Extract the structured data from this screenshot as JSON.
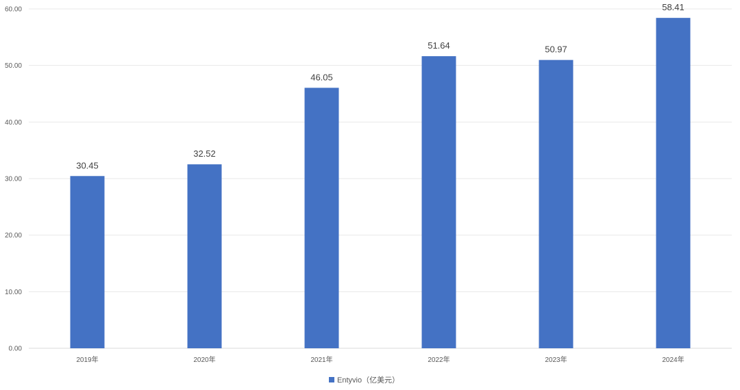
{
  "chart_data": {
    "type": "bar",
    "title": "",
    "xlabel": "",
    "ylabel": "",
    "categories": [
      "2019年",
      "2020年",
      "2021年",
      "2022年",
      "2023年",
      "2024年"
    ],
    "series": [
      {
        "name": "Entyvio（亿美元）",
        "values": [
          30.45,
          32.52,
          46.05,
          51.64,
          50.97,
          58.41
        ],
        "color": "#4472C4"
      }
    ],
    "ylim": [
      0,
      60
    ],
    "yticks": [
      "0.00",
      "10.00",
      "20.00",
      "30.00",
      "40.00",
      "50.00",
      "60.00"
    ],
    "data_labels": [
      "30.45",
      "32.52",
      "46.05",
      "51.64",
      "50.97",
      "58.41"
    ],
    "grid": true,
    "legend_position": "bottom"
  }
}
